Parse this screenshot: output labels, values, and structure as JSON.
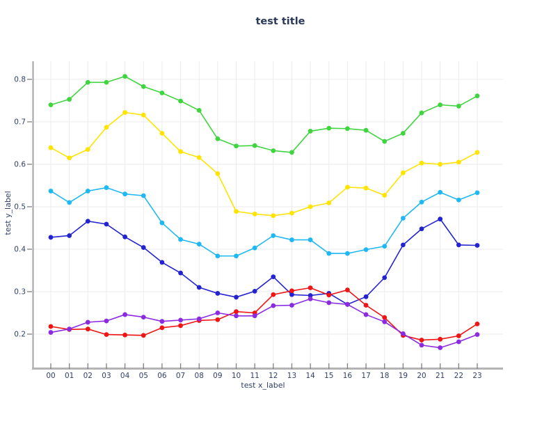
{
  "chart_data": {
    "type": "line",
    "title": "test title",
    "xlabel": "test x_label",
    "ylabel": "test y_label",
    "x_categories": [
      "00",
      "01",
      "02",
      "03",
      "04",
      "05",
      "06",
      "07",
      "08",
      "09",
      "10",
      "11",
      "12",
      "13",
      "14",
      "15",
      "16",
      "17",
      "18",
      "19",
      "20",
      "21",
      "22",
      "23"
    ],
    "y_ticks": [
      0.2,
      0.3,
      0.4,
      0.5,
      0.6,
      0.7,
      0.8
    ],
    "ylim": [
      0.12,
      0.845
    ],
    "grid": true,
    "legend_position": "none",
    "series": [
      {
        "name": "green",
        "color": "#3fd53f",
        "values": [
          0.74,
          0.753,
          0.793,
          0.793,
          0.807,
          0.783,
          0.768,
          0.749,
          0.727,
          0.66,
          0.643,
          0.644,
          0.632,
          0.628,
          0.678,
          0.685,
          0.684,
          0.68,
          0.654,
          0.673,
          0.721,
          0.74,
          0.737,
          0.761
        ]
      },
      {
        "name": "yellow",
        "color": "#ffe400",
        "values": [
          0.639,
          0.615,
          0.635,
          0.687,
          0.722,
          0.716,
          0.673,
          0.63,
          0.616,
          0.578,
          0.489,
          0.483,
          0.479,
          0.485,
          0.5,
          0.509,
          0.546,
          0.544,
          0.527,
          0.58,
          0.603,
          0.6,
          0.605,
          0.628
        ]
      },
      {
        "name": "cyan",
        "color": "#1fb8f2",
        "values": [
          0.537,
          0.51,
          0.537,
          0.545,
          0.53,
          0.526,
          0.462,
          0.423,
          0.412,
          0.384,
          0.384,
          0.403,
          0.432,
          0.422,
          0.422,
          0.39,
          0.39,
          0.399,
          0.407,
          0.473,
          0.511,
          0.534,
          0.516,
          0.533
        ]
      },
      {
        "name": "blue",
        "color": "#2323d2",
        "values": [
          0.428,
          0.432,
          0.466,
          0.459,
          0.429,
          0.404,
          0.369,
          0.344,
          0.31,
          0.296,
          0.287,
          0.301,
          0.335,
          0.293,
          0.291,
          0.296,
          0.27,
          0.288,
          0.333,
          0.41,
          0.448,
          0.471,
          0.41,
          0.409
        ]
      },
      {
        "name": "red",
        "color": "#f01414",
        "values": [
          0.218,
          0.211,
          0.212,
          0.199,
          0.198,
          0.197,
          0.215,
          0.22,
          0.232,
          0.234,
          0.253,
          0.25,
          0.293,
          0.302,
          0.309,
          0.292,
          0.304,
          0.268,
          0.239,
          0.197,
          0.186,
          0.188,
          0.196,
          0.224
        ]
      },
      {
        "name": "purple",
        "color": "#8a2be2",
        "values": [
          0.204,
          0.212,
          0.228,
          0.231,
          0.246,
          0.24,
          0.23,
          0.233,
          0.236,
          0.25,
          0.243,
          0.243,
          0.267,
          0.268,
          0.283,
          0.274,
          0.27,
          0.246,
          0.229,
          0.201,
          0.174,
          0.168,
          0.182,
          0.199
        ]
      }
    ],
    "colors": {
      "title_text": "#2b3a5c",
      "axis_text": "#2e3d66",
      "tick_text": "#31406e",
      "grid_line": "#ebebeb",
      "x_axis_line": "#b4b4b4",
      "y_axis_line": "#a3a3a3",
      "tick_mark": "#808080"
    }
  }
}
